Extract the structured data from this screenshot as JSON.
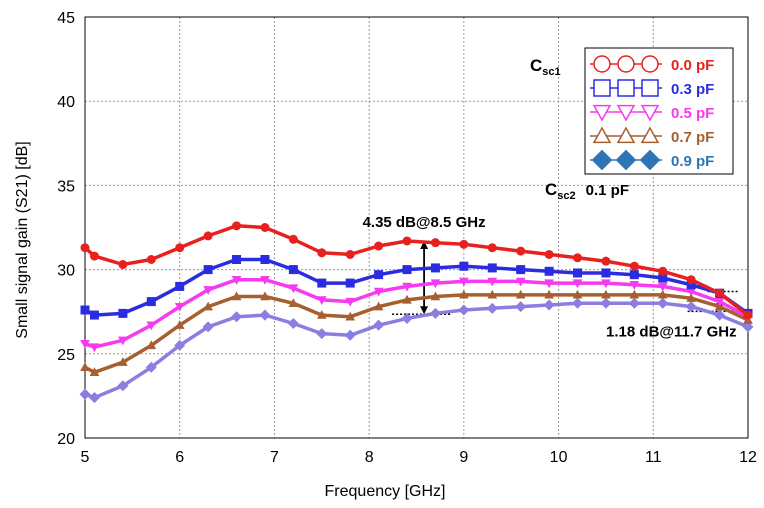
{
  "chart_data": {
    "type": "line",
    "title": "",
    "xlabel": "Frequency [GHz]",
    "ylabel": "Small signal gain (S21) [dB]",
    "xlim": [
      5,
      12
    ],
    "ylim": [
      20,
      45
    ],
    "xticks": [
      "5",
      "6",
      "7",
      "8",
      "9",
      "10",
      "11",
      "12"
    ],
    "yticks": [
      "20",
      "25",
      "30",
      "35",
      "40",
      "45"
    ],
    "grid": true,
    "legend_position": "top-right",
    "legend_title": "C",
    "legend_title_sub": "sc1",
    "fixed_param": {
      "label": "C",
      "sub": "sc2",
      "value": "0.1 pF"
    },
    "x": [
      5.0,
      5.1,
      5.4,
      5.7,
      6.0,
      6.3,
      6.6,
      6.9,
      7.2,
      7.5,
      7.8,
      8.1,
      8.4,
      8.7,
      9.0,
      9.3,
      9.6,
      9.9,
      10.2,
      10.5,
      10.8,
      11.1,
      11.4,
      11.7,
      12.0
    ],
    "series": [
      {
        "name": "0.0 pF",
        "color": "#e8211e",
        "marker": "circle",
        "values": [
          31.3,
          30.8,
          30.3,
          30.6,
          31.3,
          32.0,
          32.6,
          32.5,
          31.8,
          31.0,
          30.9,
          31.4,
          31.7,
          31.6,
          31.5,
          31.3,
          31.1,
          30.9,
          30.7,
          30.5,
          30.2,
          29.9,
          29.4,
          28.6,
          27.3
        ]
      },
      {
        "name": "0.3 pF",
        "color": "#2b2ce0",
        "marker": "square",
        "values": [
          27.6,
          27.3,
          27.4,
          28.1,
          29.0,
          30.0,
          30.6,
          30.6,
          30.0,
          29.2,
          29.2,
          29.7,
          30.0,
          30.1,
          30.2,
          30.1,
          30.0,
          29.9,
          29.8,
          29.8,
          29.7,
          29.5,
          29.1,
          28.6,
          27.4
        ]
      },
      {
        "name": "0.5 pF",
        "color": "#f53af0",
        "marker": "triangle-down",
        "values": [
          25.6,
          25.4,
          25.8,
          26.7,
          27.8,
          28.8,
          29.4,
          29.4,
          28.9,
          28.2,
          28.1,
          28.7,
          29.0,
          29.2,
          29.3,
          29.3,
          29.3,
          29.2,
          29.2,
          29.2,
          29.1,
          29.0,
          28.7,
          28.1,
          27.2
        ]
      },
      {
        "name": "0.7 pF",
        "color": "#a65f2e",
        "marker": "triangle-up",
        "values": [
          24.2,
          23.9,
          24.5,
          25.5,
          26.7,
          27.8,
          28.4,
          28.4,
          28.0,
          27.3,
          27.2,
          27.8,
          28.2,
          28.4,
          28.5,
          28.5,
          28.5,
          28.5,
          28.5,
          28.5,
          28.5,
          28.5,
          28.3,
          27.8,
          27.0
        ]
      },
      {
        "name": "0.9 pF",
        "color": "#2e75b6",
        "marker": "diamond",
        "line_color": "#8a7fe0",
        "values": [
          22.6,
          22.4,
          23.1,
          24.2,
          25.5,
          26.6,
          27.2,
          27.3,
          26.8,
          26.2,
          26.1,
          26.7,
          27.1,
          27.4,
          27.6,
          27.7,
          27.8,
          27.9,
          28.0,
          28.0,
          28.0,
          28.0,
          27.8,
          27.3,
          26.6
        ]
      }
    ],
    "annotations": [
      {
        "text": "4.35 dB@8.5 GHz",
        "x": 8.58,
        "y_top": 31.7,
        "y_bottom": 27.35
      },
      {
        "text": "1.18 dB@11.7 GHz",
        "x": 11.7,
        "y_top": 28.7,
        "y_bottom": 27.52
      }
    ]
  }
}
